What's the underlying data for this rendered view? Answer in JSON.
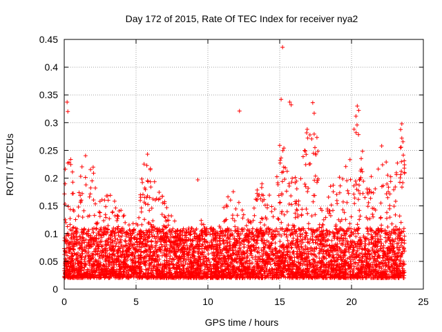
{
  "chart_data": {
    "type": "scatter",
    "title": "Day 172 of 2015, Rate Of TEC Index for receiver nya2",
    "xlabel": "GPS time / hours",
    "ylabel": "ROTI / TECUs",
    "xlim": [
      0,
      25
    ],
    "ylim": [
      0,
      0.45
    ],
    "xticks": [
      "0",
      "5",
      "10",
      "15",
      "20",
      "25"
    ],
    "yticks": [
      "0",
      "0.05",
      "0.1",
      "0.15",
      "0.2",
      "0.25",
      "0.3",
      "0.35",
      "0.4",
      "0.45"
    ],
    "grid": true,
    "marker": "plus",
    "color": "#ff0000",
    "series_profile": {
      "x_range": [
        0,
        23.7
      ],
      "envelope": [
        [
          0.0,
          0.28
        ],
        [
          0.3,
          0.24
        ],
        [
          1.0,
          0.22
        ],
        [
          1.7,
          0.25
        ],
        [
          2.5,
          0.18
        ],
        [
          3.3,
          0.17
        ],
        [
          4.0,
          0.15
        ],
        [
          5.0,
          0.13
        ],
        [
          5.6,
          0.24
        ],
        [
          6.3,
          0.2
        ],
        [
          7.0,
          0.16
        ],
        [
          8.0,
          0.11
        ],
        [
          9.0,
          0.1
        ],
        [
          9.5,
          0.13
        ],
        [
          10.5,
          0.11
        ],
        [
          11.5,
          0.18
        ],
        [
          12.3,
          0.17
        ],
        [
          13.0,
          0.12
        ],
        [
          13.5,
          0.21
        ],
        [
          14.5,
          0.16
        ],
        [
          15.0,
          0.27
        ],
        [
          15.5,
          0.25
        ],
        [
          16.3,
          0.2
        ],
        [
          17.2,
          0.33
        ],
        [
          17.5,
          0.3
        ],
        [
          18.0,
          0.16
        ],
        [
          18.8,
          0.2
        ],
        [
          19.5,
          0.21
        ],
        [
          20.0,
          0.27
        ],
        [
          20.4,
          0.33
        ],
        [
          20.8,
          0.25
        ],
        [
          21.5,
          0.2
        ],
        [
          22.2,
          0.25
        ],
        [
          23.0,
          0.18
        ],
        [
          23.4,
          0.3
        ],
        [
          23.7,
          0.27
        ]
      ],
      "outliers": [
        {
          "x": 0.2,
          "y": 0.337
        },
        {
          "x": 0.25,
          "y": 0.32
        },
        {
          "x": 5.8,
          "y": 0.243
        },
        {
          "x": 9.3,
          "y": 0.197
        },
        {
          "x": 12.2,
          "y": 0.321
        },
        {
          "x": 15.2,
          "y": 0.436
        },
        {
          "x": 15.1,
          "y": 0.342
        },
        {
          "x": 15.7,
          "y": 0.337
        },
        {
          "x": 15.8,
          "y": 0.332
        },
        {
          "x": 17.3,
          "y": 0.336
        },
        {
          "x": 17.4,
          "y": 0.317
        },
        {
          "x": 20.4,
          "y": 0.33
        },
        {
          "x": 20.5,
          "y": 0.322
        },
        {
          "x": 23.5,
          "y": 0.298
        },
        {
          "x": 23.5,
          "y": 0.272
        },
        {
          "x": 22.1,
          "y": 0.258
        }
      ]
    }
  }
}
